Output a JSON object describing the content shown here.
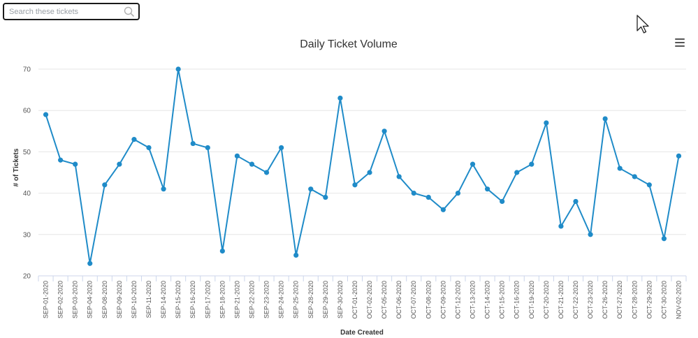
{
  "search": {
    "placeholder": "Search these tickets",
    "icon": "search-icon"
  },
  "menu": {
    "icon": "hamburger-menu-icon"
  },
  "chart_data": {
    "type": "line",
    "title": "Daily Ticket Volume",
    "xlabel": "Date Created",
    "ylabel": "# of Tickets",
    "ylim": [
      20,
      70
    ],
    "yticks": [
      20,
      30,
      40,
      50,
      60,
      70
    ],
    "grid": true,
    "color": "#1f8bc8",
    "categories": [
      "SEP-01-2020",
      "SEP-02-2020",
      "SEP-03-2020",
      "SEP-04-2020",
      "SEP-08-2020",
      "SEP-09-2020",
      "SEP-10-2020",
      "SEP-11-2020",
      "SEP-14-2020",
      "SEP-15-2020",
      "SEP-16-2020",
      "SEP-17-2020",
      "SEP-18-2020",
      "SEP-21-2020",
      "SEP-22-2020",
      "SEP-23-2020",
      "SEP-24-2020",
      "SEP-25-2020",
      "SEP-28-2020",
      "SEP-29-2020",
      "SEP-30-2020",
      "OCT-01-2020",
      "OCT-02-2020",
      "OCT-05-2020",
      "OCT-06-2020",
      "OCT-07-2020",
      "OCT-08-2020",
      "OCT-09-2020",
      "OCT-12-2020",
      "OCT-13-2020",
      "OCT-14-2020",
      "OCT-15-2020",
      "OCT-16-2020",
      "OCT-19-2020",
      "OCT-20-2020",
      "OCT-21-2020",
      "OCT-22-2020",
      "OCT-23-2020",
      "OCT-26-2020",
      "OCT-27-2020",
      "OCT-28-2020",
      "OCT-29-2020",
      "OCT-30-2020",
      "NOV-02-2020"
    ],
    "values": [
      59,
      48,
      47,
      23,
      42,
      47,
      53,
      51,
      41,
      70,
      52,
      51,
      26,
      49,
      47,
      45,
      51,
      25,
      41,
      39,
      63,
      42,
      45,
      55,
      44,
      40,
      39,
      36,
      40,
      47,
      41,
      38,
      45,
      47,
      57,
      32,
      38,
      30,
      58,
      46,
      44,
      42,
      29,
      49
    ]
  }
}
